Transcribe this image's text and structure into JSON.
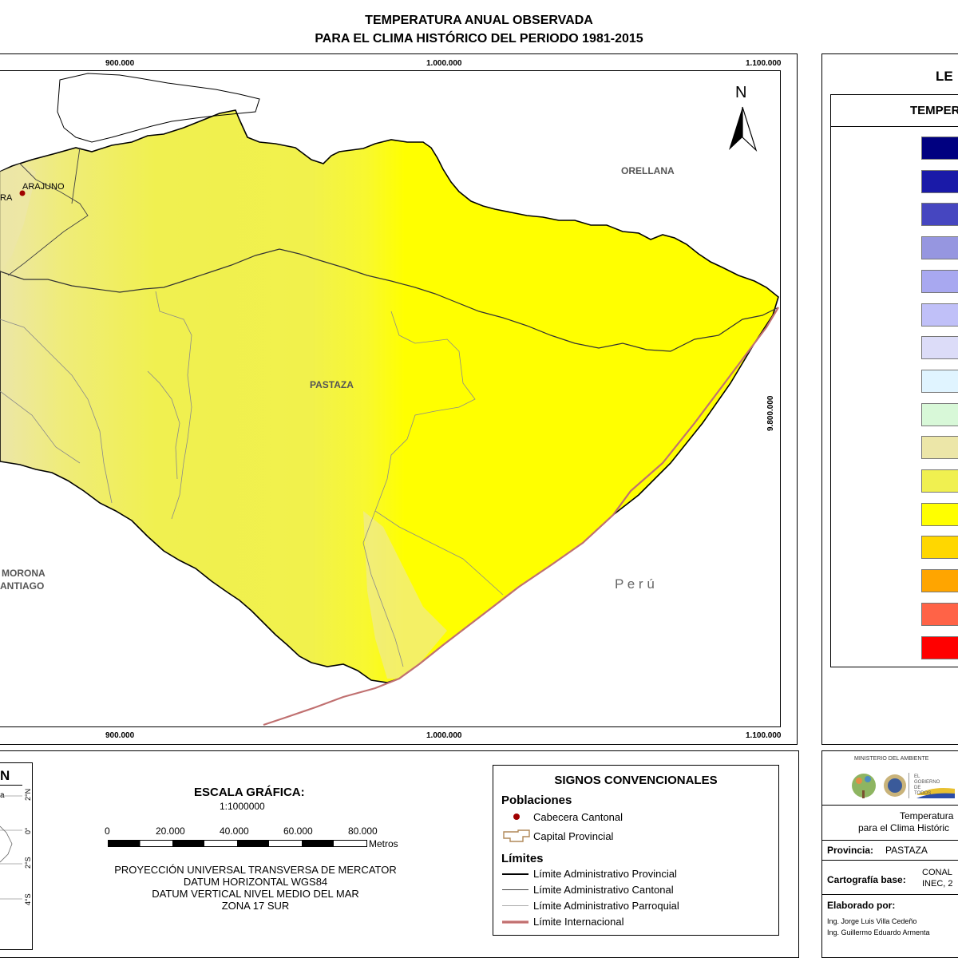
{
  "title": {
    "line1": "TEMPERATURA ANUAL OBSERVADA",
    "line2": "PARA EL CLIMA HISTÓRICO DEL PERIODO 1981-2015"
  },
  "map": {
    "grid_top": [
      "900.000",
      "1.000.000",
      "1.100.000"
    ],
    "grid_bottom": [
      "900.000",
      "1.000.000",
      "1.100.000"
    ],
    "grid_right": "9.800.000",
    "north_label": "N",
    "places": {
      "orellana": "ORELLANA",
      "pastaza": "PASTAZA",
      "arajuno": "ARAJUNO",
      "ara_partial": "RA",
      "morona_line1": "MORONA",
      "morona_line2": "ANTIAGO",
      "peru": "P e r ú"
    },
    "colors": {
      "yellow_lowland": "#ffff00",
      "yellow_pale": "#f0f050",
      "beige": "#ece6a8",
      "peru_border": "#c07070"
    }
  },
  "legend": {
    "title_partial": "LE",
    "header_partial": "TEMPER",
    "swatches": [
      "#000080",
      "#1a1aa8",
      "#4646c0",
      "#9696e0",
      "#a8a8f0",
      "#c0c0f8",
      "#dcdcf8",
      "#e0f4ff",
      "#d8f8d8",
      "#ece6a8",
      "#f0f050",
      "#ffff00",
      "#ffd700",
      "#ffa500",
      "#ff6347",
      "#ff0000"
    ]
  },
  "inset": {
    "title_partial": "N",
    "label_partial": "a",
    "lat_labels": [
      "2°N",
      "0°",
      "2°S",
      "4°S"
    ]
  },
  "scale": {
    "title": "ESCALA GRÁFICA:",
    "ratio": "1:1000000",
    "ticks": [
      "0",
      "20.000",
      "40.000",
      "60.000",
      "80.000"
    ],
    "unit": "Metros",
    "projection": [
      "PROYECCIÓN UNIVERSAL TRANSVERSA DE MERCATOR",
      "DATUM HORIZONTAL WGS84",
      "DATUM VERTICAL NIVEL MEDIO DEL MAR",
      "ZONA 17 SUR"
    ]
  },
  "signos": {
    "title": "SIGNOS CONVENCIONALES",
    "poblaciones": "Poblaciones",
    "cabecera": "Cabecera Cantonal",
    "capital": "Capital Provincial",
    "limites": "Límites",
    "provincial": "Límite Administrativo Provincial",
    "cantonal": "Límite Administrativo Cantonal",
    "parroquial": "Límite Administrativo Parroquial",
    "internacional": "Límite Internacional"
  },
  "info": {
    "ministerio": "MINISTERIO DEL AMBIENTE",
    "gobierno": "EL GOBIERNO DE TODOS",
    "desc1": "Temperatura",
    "desc2": "para el Clima Históric",
    "provincia_label": "Provincia:",
    "provincia_value": "PASTAZA",
    "cartografia_label": "Cartografía base:",
    "cartografia_value1": "CONAL",
    "cartografia_value2": "INEC, 2",
    "elaborado_label": "Elaborado por:",
    "autor1": "Ing. Jorge Luis Villa Cedeño",
    "autor2": "Ing. Guillermo Eduardo Armenta"
  }
}
